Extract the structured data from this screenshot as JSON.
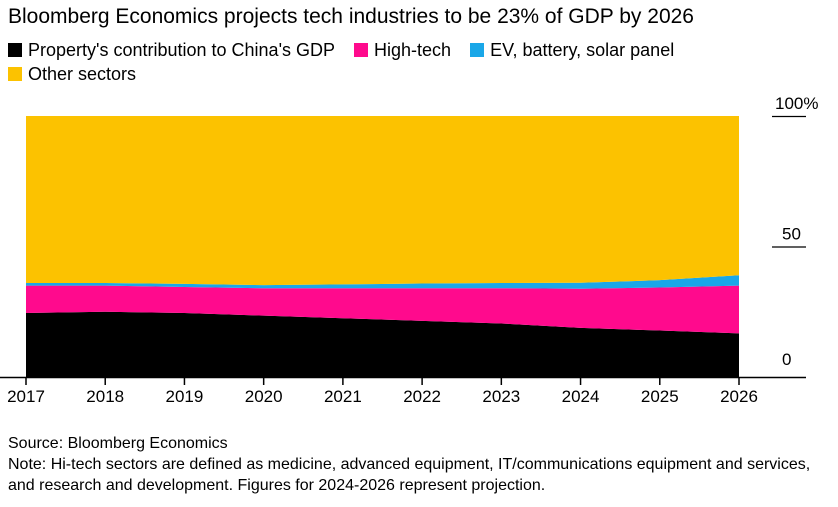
{
  "title": "Bloomberg Economics projects tech industries to be 23% of GDP by 2026",
  "source": "Source: Bloomberg Economics",
  "note": "Note: Hi-tech sectors are defined as medicine, advanced equipment, IT/communications equipment and services, and research and development. Figures for 2024-2026 represent projection.",
  "colors": {
    "property": "#000000",
    "hightech": "#ff0a8d",
    "ev": "#1aa7e8",
    "other": "#fcc200",
    "axis": "#000000",
    "background": "#ffffff"
  },
  "chart_data": {
    "type": "area",
    "stacked": true,
    "x": [
      "2017",
      "2018",
      "2019",
      "2020",
      "2021",
      "2022",
      "2023",
      "2024",
      "2025",
      "2026"
    ],
    "series": [
      {
        "name": "Property's contribution to China's GDP",
        "color": "#000000",
        "values": [
          24.5,
          25.0,
          24.5,
          23.5,
          22.5,
          21.5,
          20.5,
          18.8,
          17.8,
          16.7
        ]
      },
      {
        "name": "High-tech",
        "color": "#ff0a8d",
        "values": [
          10.5,
          10.0,
          10.0,
          10.5,
          11.5,
          12.5,
          13.5,
          15.0,
          16.5,
          18.3
        ]
      },
      {
        "name": "EV, battery, solar panel",
        "color": "#1aa7e8",
        "values": [
          1.0,
          1.0,
          1.2,
          1.2,
          1.5,
          1.8,
          2.0,
          2.3,
          2.8,
          4.0
        ]
      },
      {
        "name": "Other sectors",
        "color": "#fcc200",
        "values": [
          64.0,
          64.0,
          64.3,
          64.8,
          64.5,
          64.2,
          64.0,
          63.9,
          62.9,
          61.0
        ]
      }
    ],
    "ylim": [
      0,
      100
    ],
    "yticks": [
      "100%",
      "50",
      "0"
    ],
    "ytick_values": [
      100,
      50,
      0
    ],
    "y_axis_position": "right",
    "legend_position": "top-left",
    "grid": false
  }
}
